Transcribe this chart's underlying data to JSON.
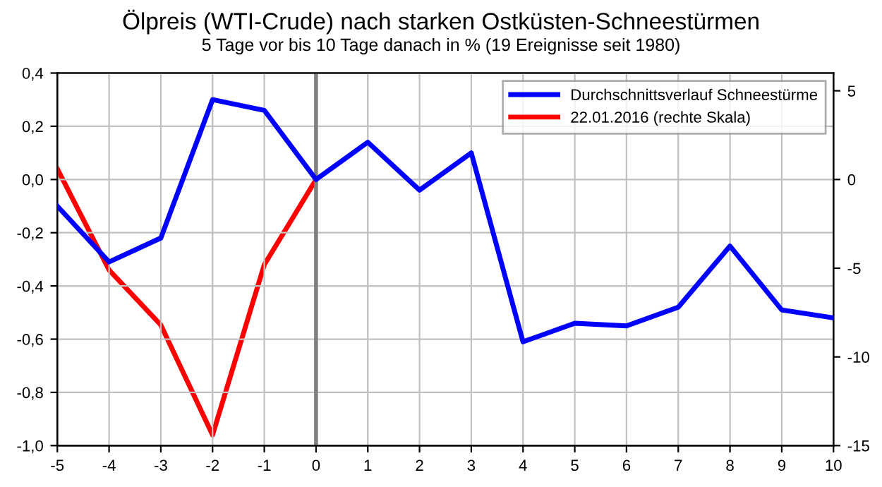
{
  "chart_data": {
    "type": "line",
    "title": "Ölpreis (WTI-Crude) nach starken Ostküsten-Schneestürmen",
    "subtitle": "5 Tage vor bis 10 Tage danach in % (19 Ereignisse seit 1980)",
    "x": [
      -5,
      -4,
      -3,
      -2,
      -1,
      0,
      1,
      2,
      3,
      4,
      5,
      6,
      7,
      8,
      9,
      10
    ],
    "xlim": [
      -5,
      10
    ],
    "xticks": [
      {
        "value": -5,
        "label": "-5"
      },
      {
        "value": -4,
        "label": "-4"
      },
      {
        "value": -3,
        "label": "-3"
      },
      {
        "value": -2,
        "label": "-2"
      },
      {
        "value": -1,
        "label": "-1"
      },
      0,
      1,
      2,
      3,
      4,
      5,
      6,
      7,
      8,
      9,
      10
    ],
    "ylim": [
      -1.0,
      0.4
    ],
    "yticks": [
      {
        "value": -1.0,
        "label": "-1,0"
      },
      {
        "value": -0.8,
        "label": "-0,8"
      },
      {
        "value": -0.6,
        "label": "-0,6"
      },
      {
        "value": -0.4,
        "label": "-0,4"
      },
      {
        "value": -0.2,
        "label": "-0,2"
      },
      {
        "value": 0.0,
        "label": "0,0"
      },
      {
        "value": 0.2,
        "label": "0,2"
      },
      {
        "value": 0.4,
        "label": "0,4"
      }
    ],
    "y2lim": [
      -15,
      6
    ],
    "y2ticks": [
      -15,
      -10,
      -5,
      0,
      5
    ],
    "series": [
      {
        "name": "Durchschnittsverlauf Schneestürme",
        "color": "#0000ff",
        "values": [
          -0.1,
          -0.31,
          -0.22,
          0.3,
          0.26,
          0.0,
          0.14,
          -0.04,
          0.1,
          -0.61,
          -0.54,
          -0.55,
          -0.48,
          -0.25,
          -0.49,
          -0.52
        ]
      },
      {
        "name": "22.01.2016 (rechte Skala)",
        "color": "#ff0000",
        "axis": "y2",
        "x": [
          -5,
          -4,
          -3,
          -2,
          -1,
          0
        ],
        "values": [
          0.6,
          -5.1,
          -8.2,
          -14.4,
          -4.8,
          0.0
        ]
      }
    ],
    "ref_lines": [
      {
        "axis": "x",
        "value": 0,
        "color": "#808080"
      }
    ],
    "grid": true,
    "legend": "top right",
    "marker": "none",
    "line_style": "solid"
  }
}
